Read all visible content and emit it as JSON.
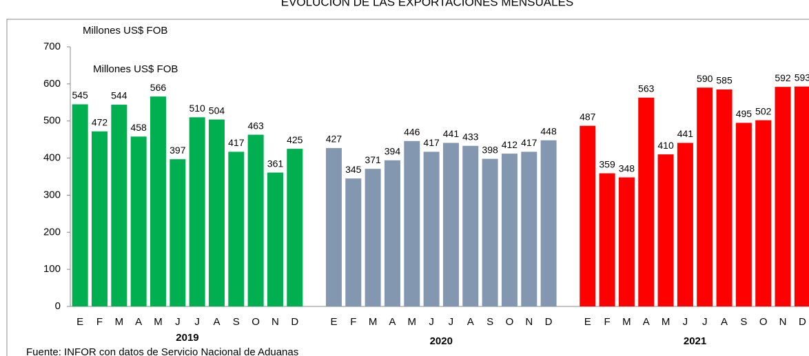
{
  "chart_data": {
    "type": "bar",
    "title": "EVOLUCIÓN DE LAS EXPORTACIONES MENSUALES",
    "y_label": "Millones US$ FOB",
    "annotation": "Millones US$ FOB",
    "source": "Fuente: INFOR con datos de  Servicio Nacional de Aduanas",
    "categories": [
      "E",
      "F",
      "M",
      "A",
      "M",
      "J",
      "J",
      "A",
      "S",
      "O",
      "N",
      "D"
    ],
    "series": [
      {
        "name": "2019",
        "color": "#00b050",
        "values": [
          545,
          472,
          544,
          458,
          566,
          397,
          510,
          504,
          417,
          463,
          361,
          425
        ]
      },
      {
        "name": "2020",
        "color": "#8497b0",
        "values": [
          427,
          345,
          371,
          394,
          446,
          417,
          441,
          433,
          398,
          412,
          417,
          448
        ]
      },
      {
        "name": "2021",
        "color": "#ff0000",
        "values": [
          487,
          359,
          348,
          563,
          410,
          441,
          590,
          585,
          495,
          502,
          592,
          593
        ]
      }
    ],
    "ylim": [
      0,
      700
    ],
    "yticks": [
      0,
      100,
      200,
      300,
      400,
      500,
      600,
      700
    ],
    "grid": false
  }
}
